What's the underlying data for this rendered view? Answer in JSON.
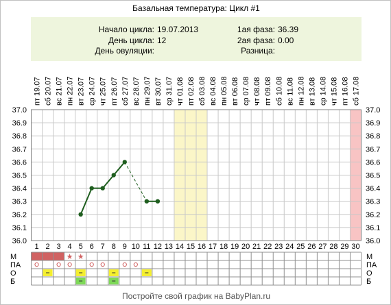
{
  "title": "Базальная температура: Цикл #1",
  "info": {
    "start_label": "Начало цикла:",
    "start_value": "19.07.2013",
    "day_label": "День цикла:",
    "day_value": "12",
    "ovulation_label": "День овуляции:",
    "ovulation_value": "",
    "phase1_label": "1ая фаза:",
    "phase1_value": "36.39",
    "phase2_label": "2ая фаза:",
    "phase2_value": "0.00",
    "diff_label": "Разница:",
    "diff_value": ""
  },
  "colors": {
    "line": "#1f5e1f",
    "grid": "#c8c8c8",
    "info_bg": "#eef5dd",
    "highlight_yellow": "#fbf6c8",
    "highlight_pink": "#f8c4c4",
    "menses": "#d06262",
    "star": "#d06262",
    "circle": "#d06262",
    "mucus_yellow": "#f4ef30",
    "mucus_green": "#7ed957"
  },
  "chart_data": {
    "type": "line",
    "title": "",
    "xlabel": "",
    "ylabel": "",
    "days": [
      1,
      2,
      3,
      4,
      5,
      6,
      7,
      8,
      9,
      10,
      11,
      12,
      13,
      14,
      15,
      16,
      17,
      18,
      19,
      20,
      21,
      22,
      23,
      24,
      25,
      26,
      27,
      28,
      29,
      30
    ],
    "weekdays": [
      "пт",
      "сб",
      "вс",
      "пн",
      "вт",
      "ср",
      "чт",
      "пт",
      "сб",
      "вс",
      "пн",
      "вт",
      "ср",
      "чт",
      "пт",
      "сб",
      "вс",
      "пн",
      "вт",
      "ср",
      "чт",
      "пт",
      "сб",
      "вс",
      "пн",
      "вт",
      "ср",
      "чт",
      "пт",
      "сб"
    ],
    "dates": [
      "19.07",
      "20.07",
      "21.07",
      "22.07",
      "23.07",
      "24.07",
      "25.07",
      "26.07",
      "27.07",
      "28.07",
      "29.07",
      "30.07",
      "31.07",
      "01.08",
      "02.08",
      "03.08",
      "04.08",
      "05.08",
      "06.08",
      "07.08",
      "08.08",
      "09.08",
      "10.08",
      "11.08",
      "12.08",
      "13.08",
      "14.08",
      "15.08",
      "16.08",
      "17.08"
    ],
    "yticks": [
      "37.0",
      "36.9",
      "36.8",
      "36.7",
      "36.6",
      "36.5",
      "36.4",
      "36.3",
      "36.2",
      "36.1",
      "36.0"
    ],
    "ylim": [
      36.0,
      37.0
    ],
    "grid": true,
    "series": [
      {
        "points": [
          {
            "day": 5,
            "value": 36.2
          },
          {
            "day": 6,
            "value": 36.4
          },
          {
            "day": 7,
            "value": 36.4
          },
          {
            "day": 8,
            "value": 36.5
          },
          {
            "day": 9,
            "value": 36.6
          },
          {
            "day": 11,
            "value": 36.3
          },
          {
            "day": 12,
            "value": 36.3
          }
        ]
      }
    ],
    "highlight_days": {
      "yellow": [
        14,
        15,
        16
      ],
      "pink": [
        30
      ]
    },
    "rows": [
      {
        "label": "М",
        "menses": [
          1,
          2,
          3
        ],
        "stars": [
          4,
          5
        ]
      },
      {
        "label": "ПА",
        "circles": [
          1,
          3,
          4,
          6,
          7,
          9,
          10
        ]
      },
      {
        "label": "О",
        "yellow": [
          2,
          5,
          8,
          11
        ]
      },
      {
        "label": "Б",
        "green": [
          5,
          8
        ]
      }
    ]
  },
  "footer": "Постройте свой график на BabyPlan.ru"
}
